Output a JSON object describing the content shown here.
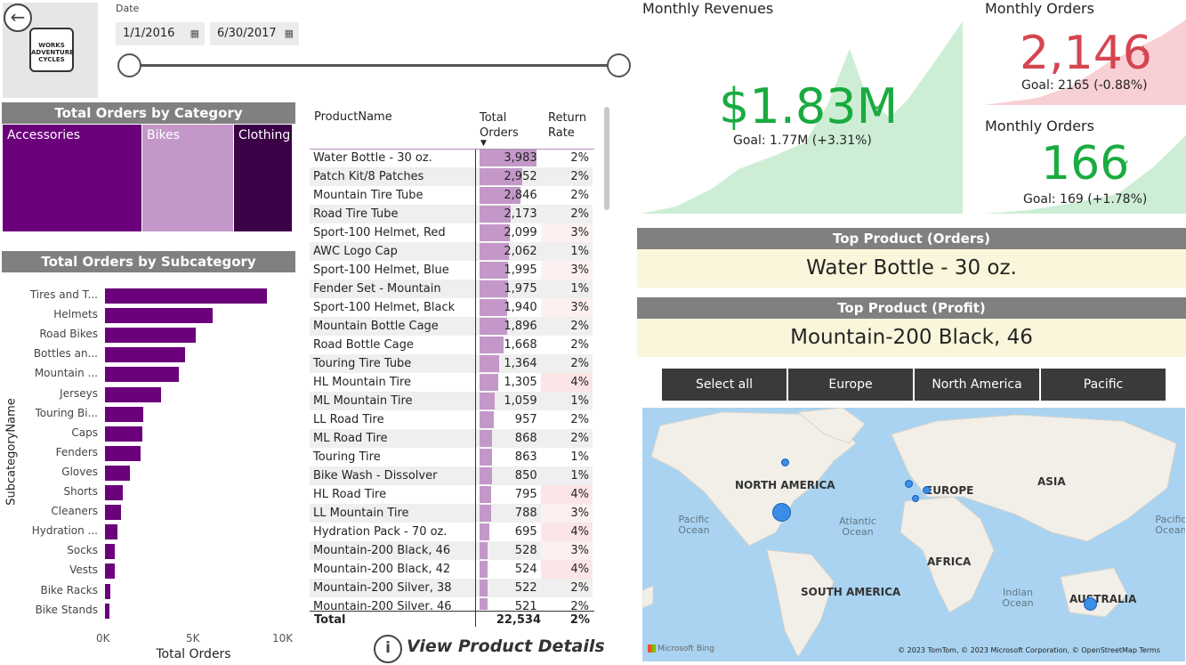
{
  "logo": {
    "text": "WORKS ADVENTURE CYCLES"
  },
  "date_filter": {
    "label": "Date",
    "start": "1/1/2016",
    "end": "6/30/2017"
  },
  "category_chart": {
    "title": "Total Orders by Category",
    "items": [
      {
        "label": "Accessories",
        "color": "#6b007b"
      },
      {
        "label": "Bikes",
        "color": "#c398c9"
      },
      {
        "label": "Clothing",
        "color": "#3c0046"
      }
    ]
  },
  "subcategory_chart": {
    "title": "Total Orders by Subcategory",
    "xlabel": "Total Orders",
    "ylabel": "SubcategoryName",
    "ticks": [
      "0K",
      "5K",
      "10K"
    ]
  },
  "chart_data": {
    "type": "bar",
    "orientation": "horizontal",
    "categories": [
      "Tires and T...",
      "Helmets",
      "Road Bikes",
      "Bottles an...",
      "Mountain ...",
      "Jerseys",
      "Touring Bi...",
      "Caps",
      "Fenders",
      "Gloves",
      "Shorts",
      "Cleaners",
      "Hydration ...",
      "Socks",
      "Vests",
      "Bike Racks",
      "Bike Stands"
    ],
    "values": [
      9100,
      6050,
      5100,
      4500,
      4150,
      3150,
      2150,
      2100,
      2000,
      1400,
      1000,
      900,
      700,
      550,
      550,
      300,
      250
    ],
    "xlim": [
      0,
      10000
    ],
    "xlabel": "Total Orders",
    "ylabel": "SubcategoryName",
    "color": "#6b007b"
  },
  "product_table": {
    "headers": [
      "ProductName",
      "Total Orders",
      "Return Rate"
    ],
    "rows": [
      [
        "Water Bottle - 30 oz.",
        "3,983",
        "2%"
      ],
      [
        "Patch Kit/8 Patches",
        "2,952",
        "2%"
      ],
      [
        "Mountain Tire Tube",
        "2,846",
        "2%"
      ],
      [
        "Road Tire Tube",
        "2,173",
        "2%"
      ],
      [
        "Sport-100 Helmet, Red",
        "2,099",
        "3%"
      ],
      [
        "AWC Logo Cap",
        "2,062",
        "1%"
      ],
      [
        "Sport-100 Helmet, Blue",
        "1,995",
        "3%"
      ],
      [
        "Fender Set - Mountain",
        "1,975",
        "1%"
      ],
      [
        "Sport-100 Helmet, Black",
        "1,940",
        "3%"
      ],
      [
        "Mountain Bottle Cage",
        "1,896",
        "2%"
      ],
      [
        "Road Bottle Cage",
        "1,668",
        "2%"
      ],
      [
        "Touring Tire Tube",
        "1,364",
        "2%"
      ],
      [
        "HL Mountain Tire",
        "1,305",
        "4%"
      ],
      [
        "ML Mountain Tire",
        "1,059",
        "1%"
      ],
      [
        "LL Road Tire",
        "957",
        "2%"
      ],
      [
        "ML Road Tire",
        "868",
        "2%"
      ],
      [
        "Touring Tire",
        "863",
        "1%"
      ],
      [
        "Bike Wash - Dissolver",
        "850",
        "1%"
      ],
      [
        "HL Road Tire",
        "795",
        "4%"
      ],
      [
        "LL Mountain Tire",
        "788",
        "3%"
      ],
      [
        "Hydration Pack - 70 oz.",
        "695",
        "4%"
      ],
      [
        "Mountain-200 Black, 46",
        "528",
        "3%"
      ],
      [
        "Mountain-200 Black, 42",
        "524",
        "4%"
      ],
      [
        "Mountain-200 Silver, 38",
        "522",
        "2%"
      ],
      [
        "Mountain-200 Silver, 46",
        "521",
        "2%"
      ]
    ],
    "order_values": [
      3983,
      2952,
      2846,
      2173,
      2099,
      2062,
      1995,
      1975,
      1940,
      1896,
      1668,
      1364,
      1305,
      1059,
      957,
      868,
      863,
      850,
      795,
      788,
      695,
      528,
      524,
      522,
      521
    ],
    "total": {
      "label": "Total",
      "orders": "22,534",
      "rate": "2%"
    },
    "details_link": "View Product Details"
  },
  "kpi_revenue": {
    "title": "Monthly Revenues",
    "value": "$1.83M",
    "goal": "Goal: 1.77M (+3.31%)",
    "status_color": "#1aab40"
  },
  "kpi_orders": {
    "title": "Monthly Orders",
    "value": "2,146",
    "goal": "Goal: 2165 (-0.88%)",
    "status_color": "#d64550"
  },
  "kpi_returns": {
    "title": "Monthly Orders",
    "value": "166",
    "goal": "Goal: 169 (+1.78%)",
    "status_color": "#1aab40"
  },
  "top_orders": {
    "title": "Top Product (Orders)",
    "value": "Water Bottle - 30 oz."
  },
  "top_profit": {
    "title": "Top Product (Profit)",
    "value": "Mountain-200 Black, 46"
  },
  "region_buttons": [
    "Select all",
    "Europe",
    "North America",
    "Pacific"
  ],
  "map": {
    "continents": [
      "NORTH AMERICA",
      "EUROPE",
      "ASIA",
      "AFRICA",
      "SOUTH AMERICA",
      "AUSTRALIA"
    ],
    "oceans": [
      "Pacific Ocean",
      "Atlantic Ocean",
      "Indian Ocean",
      "Pacific Ocean"
    ],
    "attribution": "© 2023 TomTom, © 2023 Microsoft Corporation, © OpenStreetMap  Terms",
    "brand": "Microsoft Bing"
  }
}
